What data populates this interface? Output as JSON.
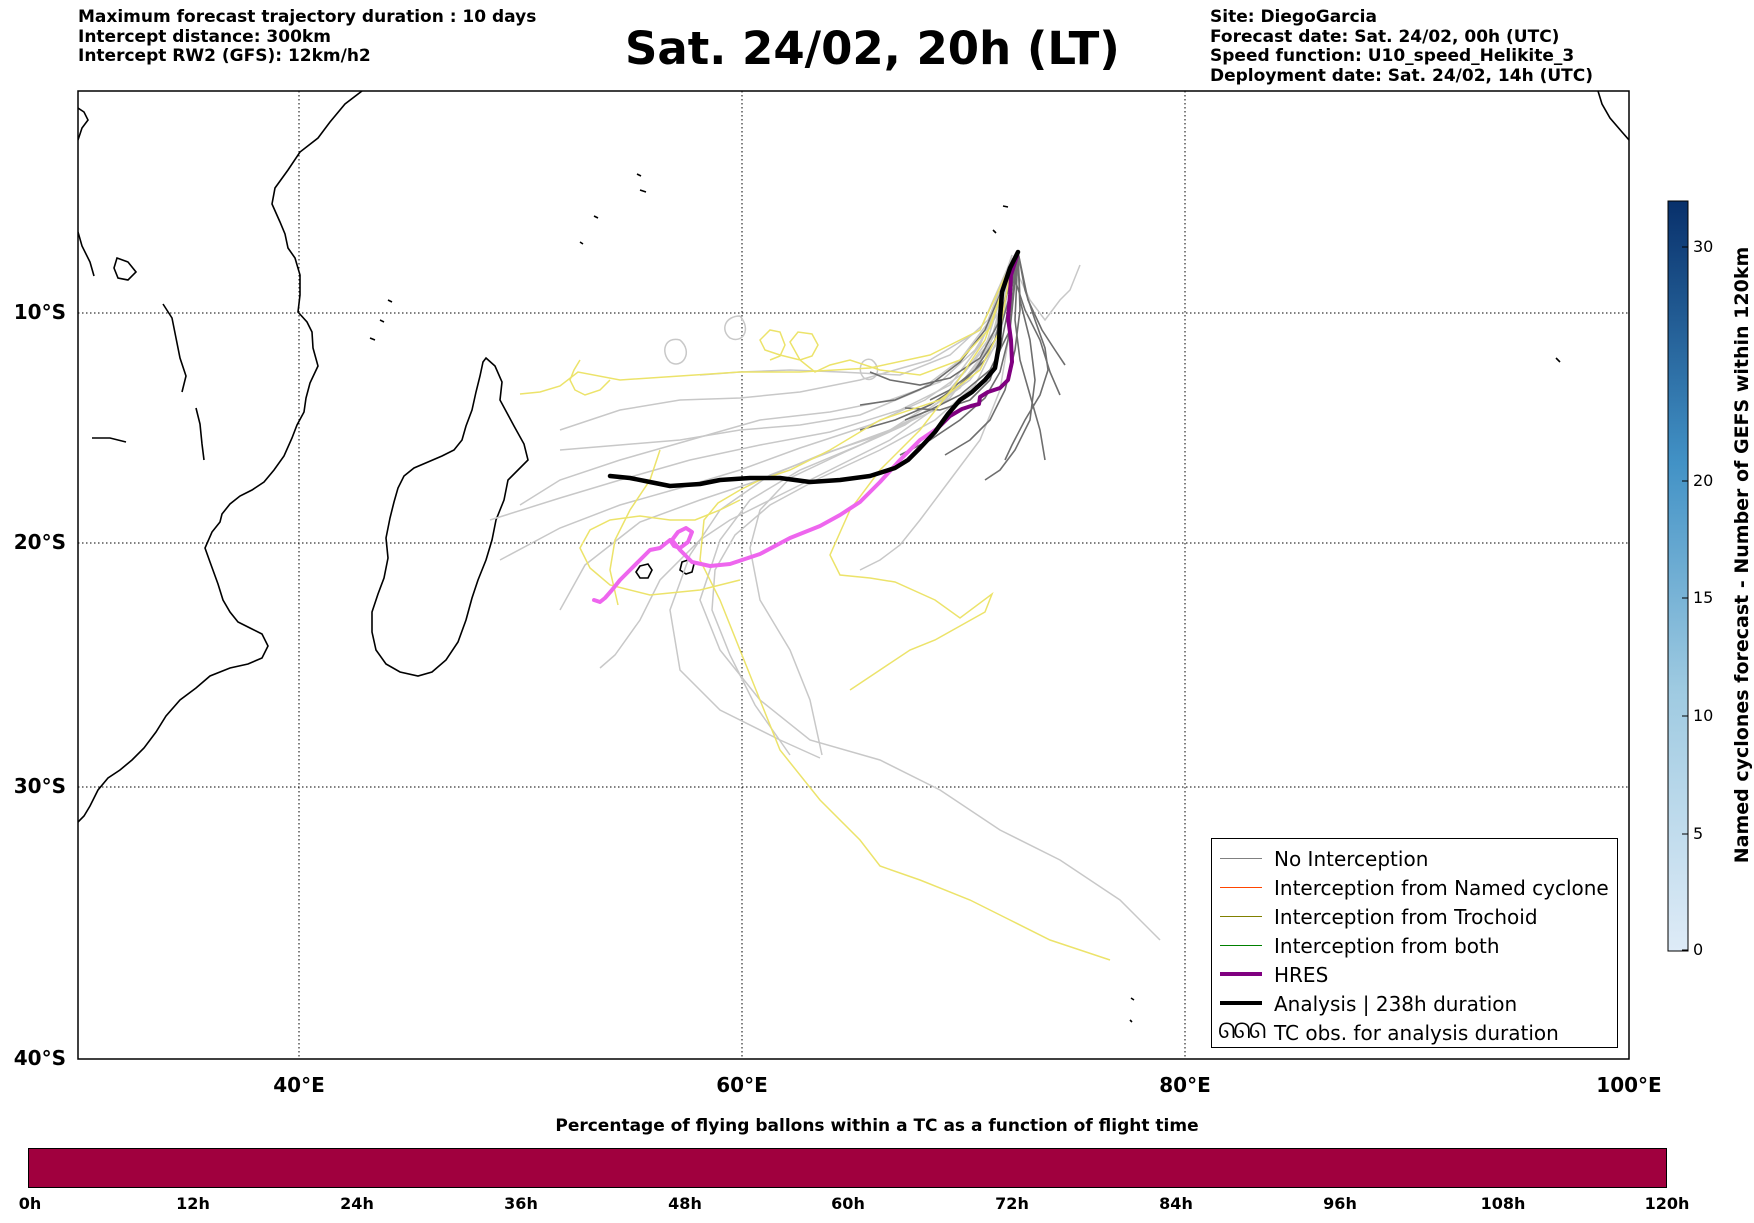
{
  "header": {
    "left_lines": [
      "Maximum forecast trajectory duration : 10 days",
      "Intercept distance: 300km",
      "Intercept RW2 (GFS):  12km/h2"
    ],
    "title": "Sat. 24/02, 20h (LT)",
    "right_lines": [
      "Site: DiegoGarcia",
      "Forecast date: Sat. 24/02, 00h (UTC)",
      "Speed function: U10_speed_Helikite_3",
      "Deployment date: Sat. 24/02, 14h (UTC)"
    ]
  },
  "map": {
    "lat_labels": [
      "10°S",
      "20°S",
      "30°S",
      "40°S"
    ],
    "lon_labels": [
      "40°E",
      "60°E",
      "80°E",
      "100°E"
    ],
    "gridlines": true,
    "land_color": "#ffffff",
    "coast_color": "#000000"
  },
  "legend": {
    "items": [
      {
        "label": "No Interception",
        "color": "#808080",
        "width": 1
      },
      {
        "label": "Interception from Named cyclone",
        "color": "#ff4500",
        "width": 1
      },
      {
        "label": "Interception from Trochoid",
        "color": "#808000",
        "width": 1
      },
      {
        "label": "Interception from both",
        "color": "#008000",
        "width": 1
      },
      {
        "label": "HRES",
        "color": "#800080",
        "width": 4
      },
      {
        "label": "Analysis | 238h duration",
        "color": "#000000",
        "width": 4
      }
    ],
    "tc_symbol": "ᘏᘏᘏ",
    "tc_label": "TC obs. for analysis duration"
  },
  "colorbar_right": {
    "label": "Named cyclones forecast - Number of GEFS within 120km",
    "ticks": [
      "0",
      "5",
      "10",
      "15",
      "20",
      "30"
    ],
    "colors": [
      "#deebf7",
      "#08306b"
    ]
  },
  "colorbar_bottom": {
    "label": "Percentage of flying ballons within a TC as a function of flight time",
    "color": "#a0003e",
    "ticks": [
      "0h",
      "12h",
      "24h",
      "36h",
      "48h",
      "60h",
      "72h",
      "84h",
      "96h",
      "108h",
      "120h"
    ]
  }
}
